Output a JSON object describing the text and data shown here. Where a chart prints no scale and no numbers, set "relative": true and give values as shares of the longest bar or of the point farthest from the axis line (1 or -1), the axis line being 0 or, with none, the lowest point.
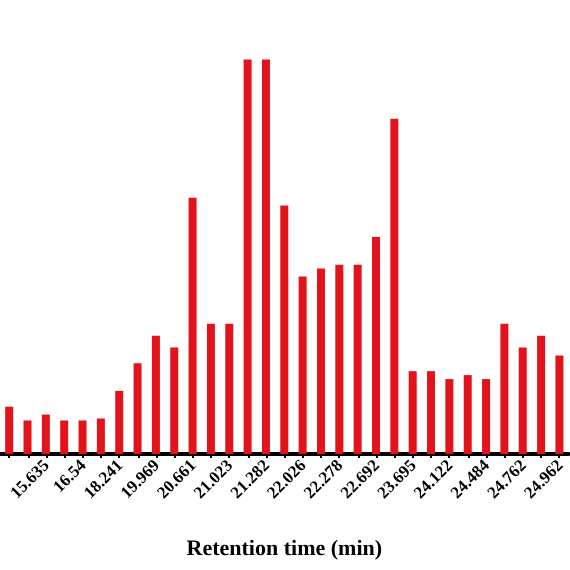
{
  "chart_data": {
    "type": "bar",
    "xlabel": "Retention time (min)",
    "relative": true,
    "categories": [
      null,
      null,
      "15.635",
      null,
      "16.54",
      null,
      "18.241",
      null,
      "19.969",
      null,
      "20.661",
      null,
      "21.023",
      null,
      "21.282",
      null,
      "22.026",
      null,
      "22.278",
      null,
      "22.692",
      null,
      "23.695",
      null,
      "24.122",
      null,
      "24.484",
      null,
      "24.762",
      null,
      "24.962"
    ],
    "values": [
      0.12,
      0.085,
      0.1,
      0.085,
      0.085,
      0.09,
      0.16,
      0.23,
      0.3,
      0.27,
      0.65,
      0.33,
      0.33,
      1.0,
      1.0,
      0.63,
      0.45,
      0.47,
      0.48,
      0.48,
      0.55,
      0.85,
      0.21,
      0.21,
      0.19,
      0.2,
      0.19,
      0.33,
      0.27,
      0.3,
      0.25
    ],
    "color": "#e3131b"
  }
}
